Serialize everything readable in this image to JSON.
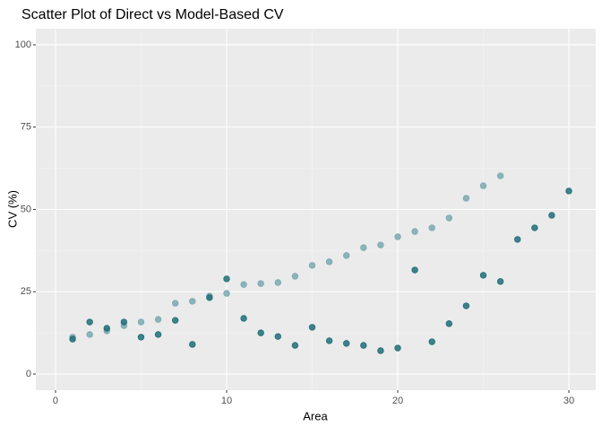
{
  "chart_data": {
    "type": "scatter",
    "title": "Scatter Plot of Direct vs Model-Based CV",
    "x_label": "Area",
    "y_label": "CV (%)",
    "xlim": [
      -1.15,
      31.57
    ],
    "ylim": [
      -4.9,
      104.9
    ],
    "xticks": [
      0,
      10,
      20,
      30
    ],
    "yticks": [
      0,
      25,
      50,
      75,
      100
    ],
    "grid": true,
    "series": [
      {
        "color": "#7aa9b1",
        "x": [
          1,
          2,
          3,
          4,
          5,
          6,
          7,
          8,
          9,
          10,
          11,
          12,
          13,
          14,
          15,
          16,
          17,
          18,
          19,
          20,
          21,
          22,
          23,
          24,
          25,
          26
        ],
        "values": [
          11.2,
          12.0,
          13.1,
          14.7,
          15.8,
          16.6,
          21.5,
          22.1,
          23.7,
          24.5,
          27.2,
          27.5,
          27.8,
          29.7,
          33.0,
          34.1,
          36.0,
          38.4,
          39.2,
          41.7,
          43.3,
          44.4,
          47.4,
          53.4,
          57.2,
          60.2
        ]
      },
      {
        "color": "#1f6e78",
        "x": [
          1,
          2,
          3,
          4,
          5,
          6,
          7,
          8,
          9,
          10,
          11,
          12,
          13,
          14,
          15,
          16,
          17,
          18,
          19,
          20,
          21,
          22,
          23,
          24,
          25,
          26,
          27,
          28,
          29,
          30
        ],
        "values": [
          10.6,
          15.8,
          13.9,
          15.8,
          11.2,
          12.0,
          16.3,
          9.0,
          23.2,
          28.9,
          16.9,
          12.5,
          11.4,
          8.7,
          14.2,
          10.1,
          9.3,
          8.7,
          7.1,
          7.9,
          31.6,
          9.8,
          15.3,
          20.7,
          30.0,
          28.1,
          40.9,
          44.4,
          48.2,
          55.6
        ]
      }
    ]
  }
}
